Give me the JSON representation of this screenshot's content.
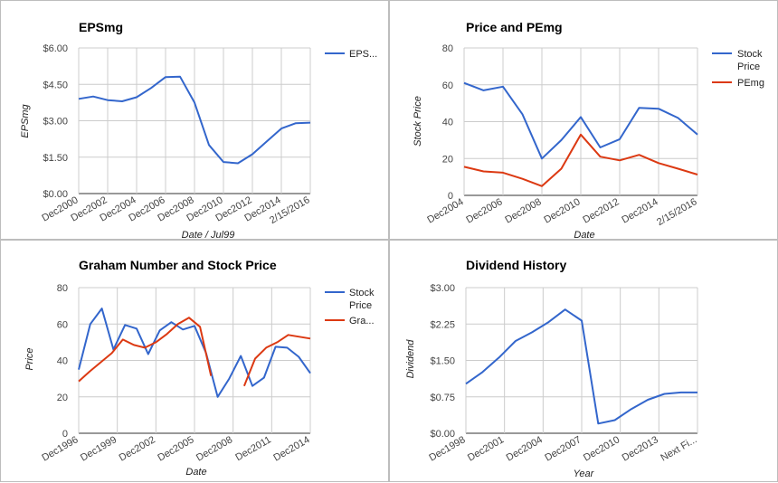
{
  "chart_data": [
    {
      "type": "line",
      "title": "EPSmg",
      "xlabel": "Date / Jul99",
      "ylabel": "EPSmg",
      "ylim": [
        0,
        6
      ],
      "yticks": [
        "$0.00",
        "$1.50",
        "$3.00",
        "$4.50",
        "$6.00"
      ],
      "xticks": [
        "Dec2000",
        "Dec2002",
        "Dec2004",
        "Dec2006",
        "Dec2008",
        "Dec2010",
        "Dec2012",
        "Dec2014",
        "2/15/2016"
      ],
      "legend_position": "right",
      "series": [
        {
          "name": "EPS...",
          "color": "#3366cc",
          "values": [
            3.9,
            4.0,
            3.85,
            3.8,
            3.97,
            4.35,
            4.8,
            4.82,
            3.75,
            2.0,
            1.3,
            1.25,
            1.62,
            2.15,
            2.68,
            2.9,
            2.92
          ]
        }
      ]
    },
    {
      "type": "line",
      "title": "Price and PEmg",
      "xlabel": "Date",
      "ylabel": "Stock Price",
      "ylim": [
        0,
        80
      ],
      "yticks": [
        "0",
        "20",
        "40",
        "60",
        "80"
      ],
      "xticks": [
        "Dec2004",
        "Dec2006",
        "Dec2008",
        "Dec2010",
        "Dec2012",
        "Dec2014",
        "2/15/2016"
      ],
      "legend_position": "right",
      "series": [
        {
          "name": "Stock Price",
          "color": "#3366cc",
          "values": [
            61,
            57,
            59,
            44,
            20,
            30,
            42.5,
            26,
            30.5,
            47.5,
            47,
            42,
            33
          ]
        },
        {
          "name": "PEmg",
          "color": "#dc3912",
          "values": [
            15.5,
            13,
            12.3,
            9,
            5,
            14.5,
            33,
            21,
            19,
            22,
            17.5,
            14.5,
            11.3
          ]
        }
      ]
    },
    {
      "type": "line",
      "title": "Graham Number and Stock Price",
      "xlabel": "Date",
      "ylabel": "Price",
      "ylim": [
        0,
        80
      ],
      "yticks": [
        "0",
        "20",
        "40",
        "60",
        "80"
      ],
      "xticks": [
        "Dec1996",
        "Dec1999",
        "Dec2002",
        "Dec2005",
        "Dec2008",
        "Dec2011",
        "Dec2014"
      ],
      "legend_position": "right",
      "series": [
        {
          "name": "Stock Price",
          "color": "#3366cc",
          "values": [
            35,
            60,
            68.5,
            46,
            59.5,
            57.5,
            43.5,
            56.5,
            61,
            57,
            59,
            44,
            20,
            30,
            42.5,
            26,
            30.5,
            47.5,
            47,
            42,
            33
          ]
        },
        {
          "name": "Gra...",
          "color": "#dc3912",
          "values": [
            28.5,
            34,
            39,
            44,
            51.5,
            48.5,
            47,
            50,
            54.5,
            60,
            63.5,
            58.5,
            31.5,
            null,
            null,
            26,
            41,
            47,
            50,
            54,
            53,
            52
          ]
        }
      ]
    },
    {
      "type": "line",
      "title": "Dividend History",
      "xlabel": "Year",
      "ylabel": "Dividend",
      "ylim": [
        0,
        3
      ],
      "yticks": [
        "$0.00",
        "$0.75",
        "$1.50",
        "$2.25",
        "$3.00"
      ],
      "xticks": [
        "Dec1998",
        "Dec2001",
        "Dec2004",
        "Dec2007",
        "Dec2010",
        "Dec2013",
        "Next Fi..."
      ],
      "legend_position": "none",
      "series": [
        {
          "color": "#3366cc",
          "values": [
            1.02,
            1.26,
            1.56,
            1.9,
            2.08,
            2.29,
            2.55,
            2.32,
            0.2,
            0.27,
            0.5,
            0.69,
            0.81,
            0.84,
            0.84
          ]
        }
      ]
    }
  ]
}
